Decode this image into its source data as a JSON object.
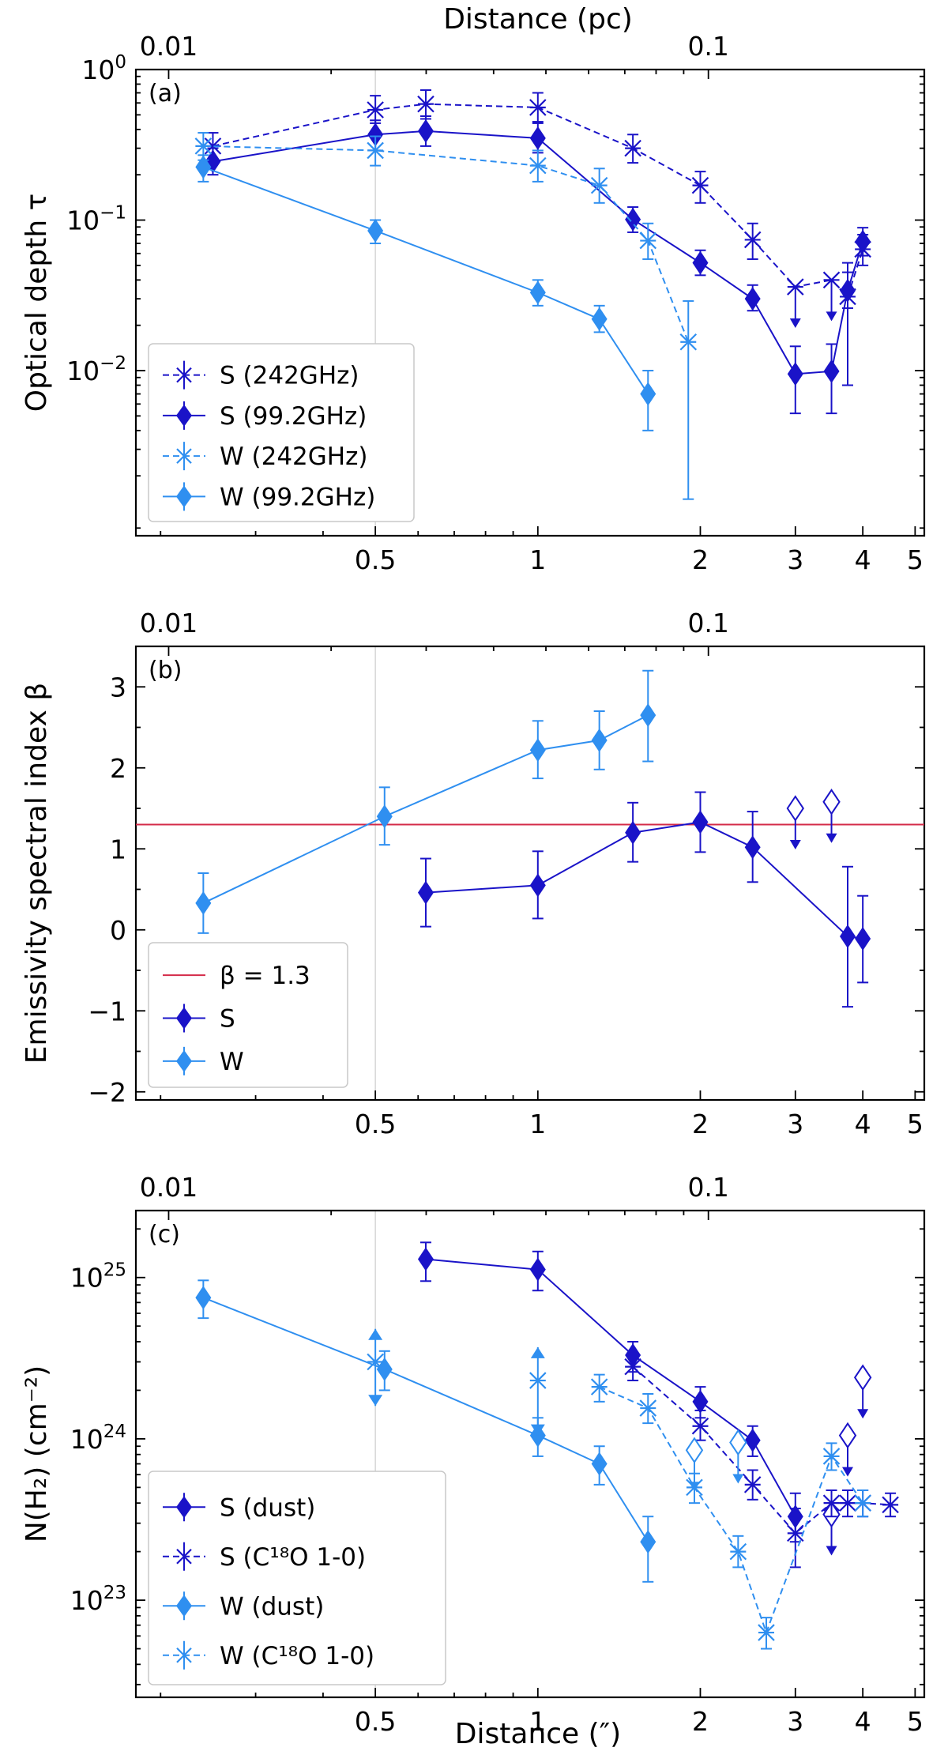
{
  "figure_axes": {
    "top_title": "Distance (pc)",
    "top_ticks": [
      "0.01",
      "0.1"
    ],
    "bottom_title": "Distance (″)",
    "bottom_ticks": [
      "0.5",
      "1",
      "2",
      "3",
      "4",
      "5"
    ]
  },
  "colors": {
    "S": "#1a13c8",
    "W": "#2f8ff0",
    "beta_line": "#d42b49"
  },
  "chart_data": [
    {
      "type": "scatter",
      "panel_label": "(a)",
      "ylabel": "Optical depth τ",
      "yscale": "log",
      "xscale": "log",
      "xlim": [
        0.18,
        5.2
      ],
      "ylim": [
        0.0008,
        1.0
      ],
      "y_ticks": [
        {
          "value": 1.0,
          "base": "10",
          "exp": "0"
        },
        {
          "value": 0.1,
          "base": "10",
          "exp": "−1"
        },
        {
          "value": 0.01,
          "base": "10",
          "exp": "−2"
        }
      ],
      "legend": [
        "S (242GHz)",
        "S (99.2GHz)",
        "W (242GHz)",
        "W (99.2GHz)"
      ],
      "series": [
        {
          "name": "S (242GHz)",
          "color_key": "S",
          "marker": "x",
          "dashed": true,
          "points": [
            {
              "x": 0.25,
              "y": 0.31,
              "lo": 0.24,
              "hi": 0.38
            },
            {
              "x": 0.5,
              "y": 0.54,
              "lo": 0.44,
              "hi": 0.67
            },
            {
              "x": 0.62,
              "y": 0.59,
              "lo": 0.47,
              "hi": 0.73
            },
            {
              "x": 1.0,
              "y": 0.56,
              "lo": 0.45,
              "hi": 0.7
            },
            {
              "x": 1.5,
              "y": 0.3,
              "lo": 0.24,
              "hi": 0.37
            },
            {
              "x": 2.0,
              "y": 0.17,
              "lo": 0.13,
              "hi": 0.21
            },
            {
              "x": 2.5,
              "y": 0.074,
              "lo": 0.055,
              "hi": 0.095
            },
            {
              "x": 3.0,
              "y": 0.036,
              "upper_limit": true
            },
            {
              "x": 3.5,
              "y": 0.04,
              "upper_limit": true
            },
            {
              "x": 3.75,
              "y": 0.031,
              "lo": 0.008,
              "hi": 0.052
            },
            {
              "x": 4.0,
              "y": 0.064,
              "lo": 0.05,
              "hi": 0.08
            }
          ]
        },
        {
          "name": "S (99.2GHz)",
          "color_key": "S",
          "marker": "diamond",
          "dashed": false,
          "points": [
            {
              "x": 0.25,
              "y": 0.245,
              "lo": 0.2,
              "hi": 0.3
            },
            {
              "x": 0.5,
              "y": 0.37,
              "lo": 0.29,
              "hi": 0.46
            },
            {
              "x": 0.62,
              "y": 0.39,
              "lo": 0.31,
              "hi": 0.49
            },
            {
              "x": 1.0,
              "y": 0.35,
              "lo": 0.28,
              "hi": 0.44
            },
            {
              "x": 1.5,
              "y": 0.101,
              "lo": 0.083,
              "hi": 0.122
            },
            {
              "x": 2.0,
              "y": 0.052,
              "lo": 0.043,
              "hi": 0.063
            },
            {
              "x": 2.5,
              "y": 0.03,
              "lo": 0.025,
              "hi": 0.037
            },
            {
              "x": 3.0,
              "y": 0.0095,
              "lo": 0.0052,
              "hi": 0.0145
            },
            {
              "x": 3.5,
              "y": 0.0099,
              "lo": 0.0052,
              "hi": 0.015
            },
            {
              "x": 3.75,
              "y": 0.034,
              "lo": 0.026,
              "hi": 0.045
            },
            {
              "x": 4.0,
              "y": 0.072,
              "lo": 0.058,
              "hi": 0.089
            }
          ]
        },
        {
          "name": "W (242GHz)",
          "color_key": "W",
          "marker": "x",
          "dashed": true,
          "points": [
            {
              "x": 0.24,
              "y": 0.31,
              "lo": 0.25,
              "hi": 0.38
            },
            {
              "x": 0.5,
              "y": 0.29,
              "lo": 0.23,
              "hi": 0.36
            },
            {
              "x": 1.0,
              "y": 0.23,
              "lo": 0.18,
              "hi": 0.29
            },
            {
              "x": 1.3,
              "y": 0.17,
              "lo": 0.13,
              "hi": 0.22
            },
            {
              "x": 1.6,
              "y": 0.073,
              "lo": 0.055,
              "hi": 0.095
            },
            {
              "x": 1.9,
              "y": 0.0155,
              "lo": 0.0014,
              "hi": 0.029
            }
          ]
        },
        {
          "name": "W (99.2GHz)",
          "color_key": "W",
          "marker": "diamond",
          "dashed": false,
          "points": [
            {
              "x": 0.24,
              "y": 0.225,
              "lo": 0.18,
              "hi": 0.27
            },
            {
              "x": 0.5,
              "y": 0.085,
              "lo": 0.07,
              "hi": 0.1
            },
            {
              "x": 1.0,
              "y": 0.033,
              "lo": 0.027,
              "hi": 0.04
            },
            {
              "x": 1.3,
              "y": 0.022,
              "lo": 0.018,
              "hi": 0.027
            },
            {
              "x": 1.6,
              "y": 0.007,
              "lo": 0.004,
              "hi": 0.01
            }
          ]
        }
      ]
    },
    {
      "type": "scatter",
      "panel_label": "(b)",
      "ylabel": "Emissivity spectral index β",
      "yscale": "linear",
      "xscale": "log",
      "xlim": [
        0.18,
        5.2
      ],
      "ylim": [
        -2.1,
        3.5
      ],
      "y_ticks": [
        {
          "value": -2,
          "label": "−2"
        },
        {
          "value": -1,
          "label": "−1"
        },
        {
          "value": 0,
          "label": "0"
        },
        {
          "value": 1,
          "label": "1"
        },
        {
          "value": 2,
          "label": "2"
        },
        {
          "value": 3,
          "label": "3"
        }
      ],
      "hline": {
        "y": 1.3,
        "label": "β = 1.3"
      },
      "legend": [
        "β = 1.3",
        "S",
        "W"
      ],
      "series": [
        {
          "name": "S",
          "color_key": "S",
          "marker": "diamond",
          "dashed": false,
          "points": [
            {
              "x": 0.62,
              "y": 0.46,
              "lo": 0.04,
              "hi": 0.88
            },
            {
              "x": 1.0,
              "y": 0.55,
              "lo": 0.14,
              "hi": 0.97
            },
            {
              "x": 1.5,
              "y": 1.2,
              "lo": 0.84,
              "hi": 1.57
            },
            {
              "x": 2.0,
              "y": 1.33,
              "lo": 0.96,
              "hi": 1.7
            },
            {
              "x": 2.5,
              "y": 1.02,
              "lo": 0.59,
              "hi": 1.46
            },
            {
              "x": 3.75,
              "y": -0.08,
              "lo": -0.95,
              "hi": 0.78
            },
            {
              "x": 4.0,
              "y": -0.11,
              "lo": -0.65,
              "hi": 0.42
            }
          ]
        },
        {
          "name": "S (upper limits)",
          "color_key": "S",
          "marker": "open-diamond",
          "dashed": false,
          "no_line": true,
          "points": [
            {
              "x": 3.0,
              "y": 1.5,
              "upper_limit": true
            },
            {
              "x": 3.5,
              "y": 1.58,
              "upper_limit": true
            }
          ]
        },
        {
          "name": "W",
          "color_key": "W",
          "marker": "diamond",
          "dashed": false,
          "points": [
            {
              "x": 0.24,
              "y": 0.33,
              "lo": -0.04,
              "hi": 0.7
            },
            {
              "x": 0.52,
              "y": 1.4,
              "lo": 1.05,
              "hi": 1.76
            },
            {
              "x": 1.0,
              "y": 2.22,
              "lo": 1.87,
              "hi": 2.58
            },
            {
              "x": 1.3,
              "y": 2.34,
              "lo": 1.98,
              "hi": 2.7
            },
            {
              "x": 1.6,
              "y": 2.65,
              "lo": 2.08,
              "hi": 3.2
            }
          ]
        }
      ]
    },
    {
      "type": "scatter",
      "panel_label": "(c)",
      "ylabel": "N(H₂) (cm⁻²)",
      "yscale": "log",
      "xscale": "log",
      "xlim": [
        0.18,
        5.2
      ],
      "ylim": [
        2.5e+22,
        2.6e+25
      ],
      "y_ticks": [
        {
          "value": 1e+25,
          "base": "10",
          "exp": "25"
        },
        {
          "value": 1e+24,
          "base": "10",
          "exp": "24"
        },
        {
          "value": 1e+23,
          "base": "10",
          "exp": "23"
        }
      ],
      "legend": [
        "S (dust)",
        "S (C¹⁸O 1-0)",
        "W (dust)",
        "W (C¹⁸O 1-0)"
      ],
      "series": [
        {
          "name": "S (dust)",
          "color_key": "S",
          "marker": "diamond",
          "dashed": false,
          "points": [
            {
              "x": 0.62,
              "y": 1.3e+25,
              "lo": 9.5e+24,
              "hi": 1.65e+25
            },
            {
              "x": 1.0,
              "y": 1.12e+25,
              "lo": 8.3e+24,
              "hi": 1.45e+25
            },
            {
              "x": 1.5,
              "y": 3.3e+24,
              "lo": 2.6e+24,
              "hi": 4e+24
            },
            {
              "x": 2.0,
              "y": 1.7e+24,
              "lo": 1.35e+24,
              "hi": 2.1e+24
            },
            {
              "x": 2.5,
              "y": 9.8e+23,
              "lo": 7.8e+23,
              "hi": 1.2e+24
            },
            {
              "x": 3.0,
              "y": 3.3e+23,
              "lo": 2.3e+23,
              "hi": 4.6e+23
            }
          ]
        },
        {
          "name": "S (dust, upper limits)",
          "color_key": "S",
          "marker": "open-diamond",
          "dashed": false,
          "no_line": true,
          "points": [
            {
              "x": 3.5,
              "y": 3.4e+23,
              "upper_limit": true
            },
            {
              "x": 3.75,
              "y": 1.05e+24,
              "upper_limit": true
            },
            {
              "x": 4.0,
              "y": 2.4e+24,
              "upper_limit": true
            }
          ]
        },
        {
          "name": "S (C¹⁸O 1-0)",
          "color_key": "S",
          "marker": "x",
          "dashed": true,
          "points": [
            {
              "x": 1.5,
              "y": 2.8e+24,
              "lo": 2.3e+24,
              "hi": 3.4e+24
            },
            {
              "x": 2.0,
              "y": 1.2e+24,
              "lo": 9.8e+23,
              "hi": 1.5e+24
            },
            {
              "x": 2.5,
              "y": 5.2e+23,
              "lo": 4.2e+23,
              "hi": 6.4e+23
            },
            {
              "x": 3.0,
              "y": 2.6e+23,
              "lo": 1.6e+23,
              "hi": 3.7e+23
            },
            {
              "x": 3.5,
              "y": 4e+23,
              "lo": 3.3e+23,
              "hi": 4.8e+23
            },
            {
              "x": 3.75,
              "y": 4e+23,
              "lo": 3.3e+23,
              "hi": 4.8e+23
            },
            {
              "x": 4.0,
              "y": 4e+23,
              "lo": 3.3e+23,
              "hi": 4.8e+23
            },
            {
              "x": 4.5,
              "y": 3.9e+23,
              "lo": 3.3e+23,
              "hi": 4.6e+23
            }
          ]
        },
        {
          "name": "W (dust)",
          "color_key": "W",
          "marker": "diamond",
          "dashed": false,
          "points": [
            {
              "x": 0.24,
              "y": 7.5e+24,
              "lo": 5.6e+24,
              "hi": 9.6e+24
            },
            {
              "x": 0.52,
              "y": 2.7e+24,
              "lo": 2e+24,
              "hi": 3.5e+24
            },
            {
              "x": 1.0,
              "y": 1.05e+24,
              "lo": 7.8e+23,
              "hi": 1.35e+24
            },
            {
              "x": 1.3,
              "y": 7e+23,
              "lo": 5.2e+23,
              "hi": 9e+23
            },
            {
              "x": 1.6,
              "y": 2.3e+23,
              "lo": 1.3e+23,
              "hi": 3.3e+23
            }
          ]
        },
        {
          "name": "W (C¹⁸O 1-0)",
          "color_key": "W",
          "marker": "x",
          "dashed": true,
          "points": [
            {
              "x": 1.3,
              "y": 2.1e+24,
              "lo": 1.7e+24,
              "hi": 2.5e+24
            },
            {
              "x": 1.6,
              "y": 1.55e+24,
              "lo": 1.25e+24,
              "hi": 1.9e+24
            },
            {
              "x": 1.95,
              "y": 5e+23,
              "lo": 4e+23,
              "hi": 6.1e+23
            },
            {
              "x": 2.35,
              "y": 2e+23,
              "lo": 1.6e+23,
              "hi": 2.5e+23
            },
            {
              "x": 2.65,
              "y": 6.3e+22,
              "lo": 5e+22,
              "hi": 7.8e+22
            },
            {
              "x": 3.5,
              "y": 7.8e+23,
              "lo": 6.4e+23,
              "hi": 9.4e+23
            },
            {
              "x": 4.0,
              "y": 4e+23,
              "lo": 3.3e+23,
              "hi": 4.8e+23
            }
          ]
        },
        {
          "name": "W (dust, limits)",
          "color_key": "W",
          "marker": "x",
          "dashed": false,
          "no_line": true,
          "points": [
            {
              "x": 0.5,
              "y": 3e+24,
              "range_lo": 1.6e+24,
              "range_hi": 4.8e+24
            },
            {
              "x": 1.0,
              "y": 2.3e+24,
              "range_lo": 1.05e+24,
              "range_hi": 3.7e+24
            }
          ]
        },
        {
          "name": "W (C¹⁸O 1-0, upper limits)",
          "color_key": "W",
          "marker": "open-diamond",
          "dashed": false,
          "no_line": true,
          "points": [
            {
              "x": 1.95,
              "y": 8.5e+23,
              "upper_limit": true
            },
            {
              "x": 2.35,
              "y": 9.5e+23,
              "upper_limit": true
            }
          ]
        }
      ]
    }
  ]
}
